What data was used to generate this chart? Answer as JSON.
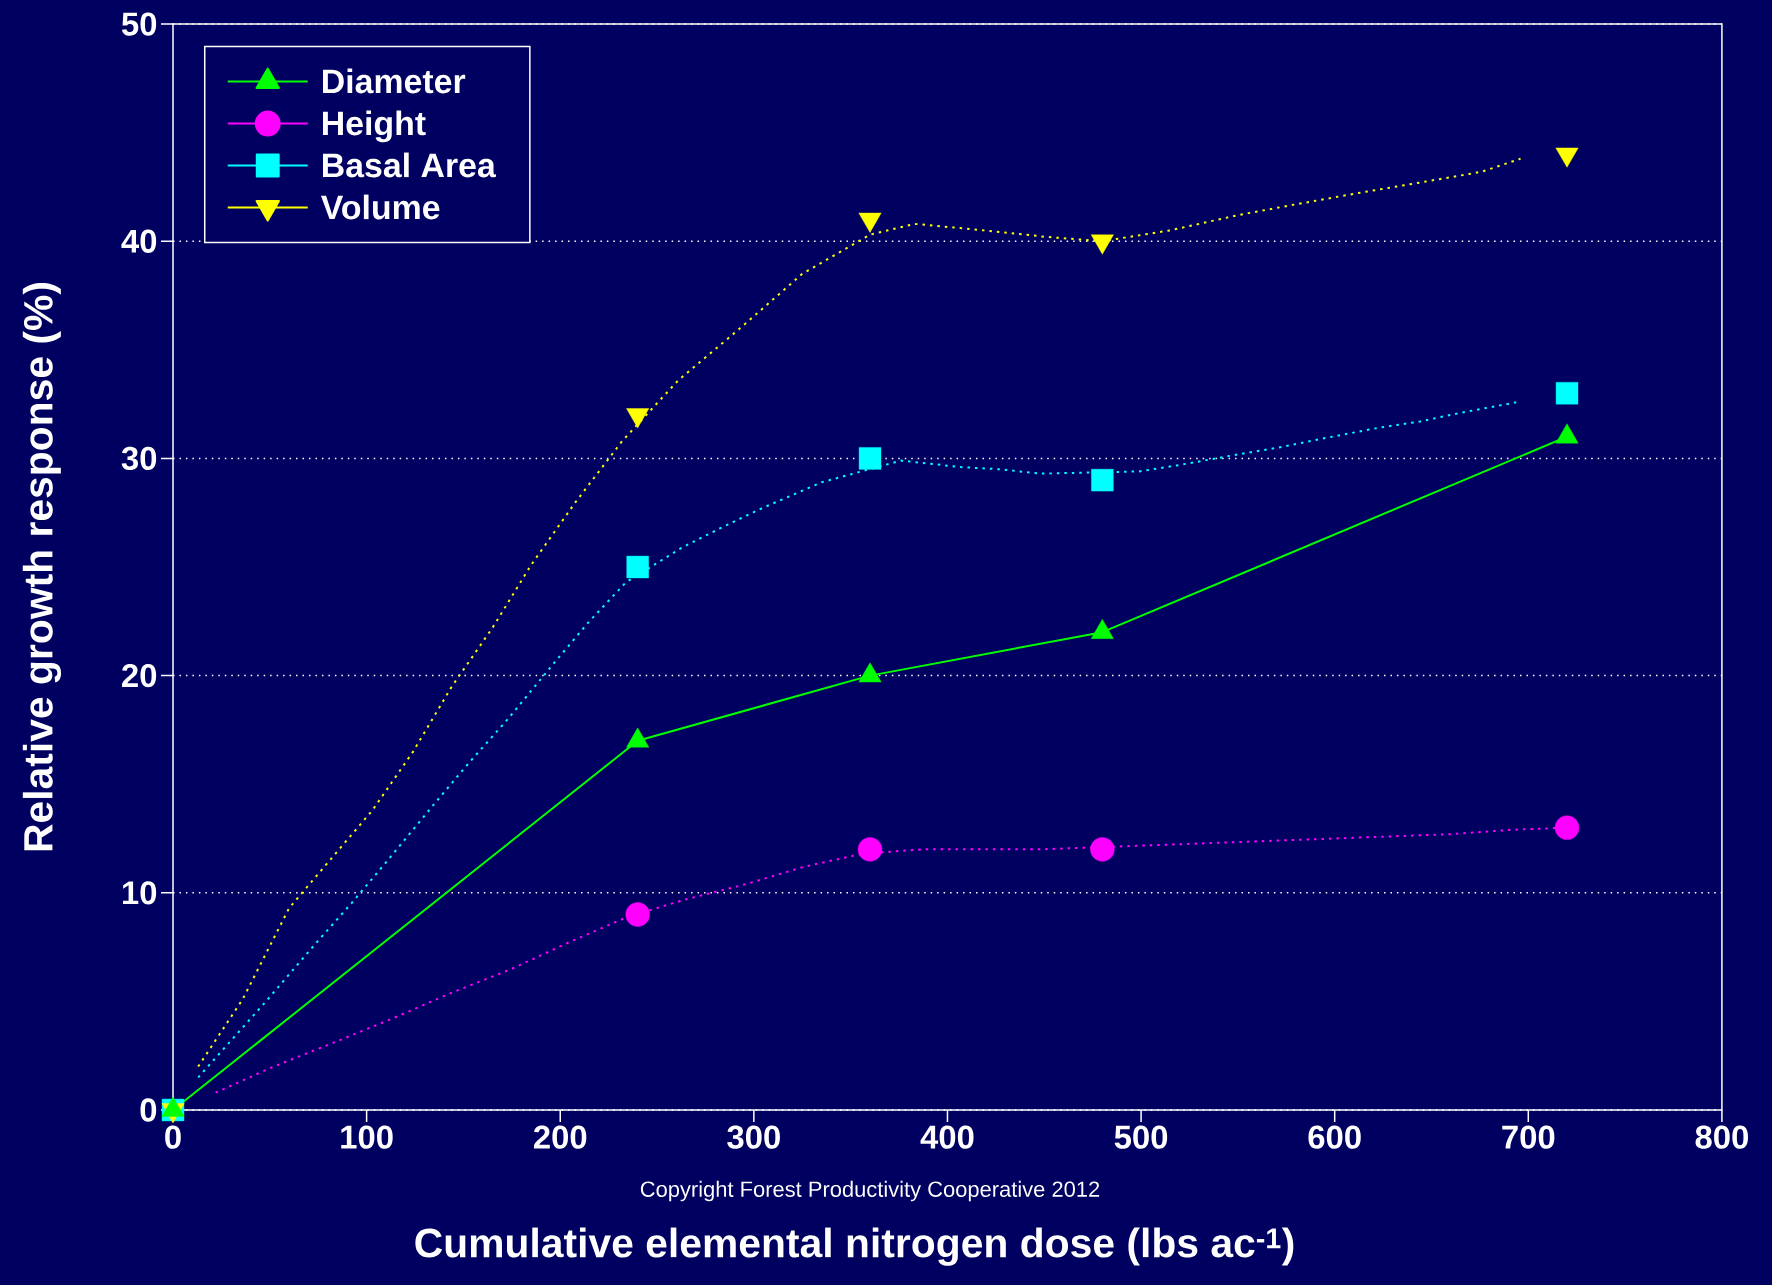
{
  "chart_data": {
    "type": "scatter",
    "xlabel": "Cumulative elemental nitrogen dose (lbs ac$^{-1}$)",
    "ylabel": "Relative growth response (%)",
    "annotations": [
      "Copyright Forest Productivity Cooperative 2012"
    ],
    "xlim": [
      0,
      800
    ],
    "ylim": [
      0,
      50
    ],
    "xticks": [
      0,
      100,
      200,
      300,
      400,
      500,
      600,
      700,
      800
    ],
    "yticks": [
      0,
      10,
      20,
      30,
      40,
      50
    ],
    "grid": "y",
    "legend": "top left",
    "x": [
      0,
      240,
      360,
      480,
      720
    ],
    "series": [
      {
        "name": "Diameter",
        "type": "line",
        "color": "#00ff00",
        "marker": "triangle",
        "line_style": "solid",
        "values": [
          0,
          17,
          20,
          22,
          31
        ]
      },
      {
        "name": "Height",
        "color": "#ff00ff",
        "marker": "circle",
        "values": [
          null,
          9,
          12,
          12,
          13
        ]
      },
      {
        "name": "Basal Area",
        "color": "#00ffff",
        "marker": "square",
        "values": [
          0,
          25,
          30,
          29,
          33
        ]
      },
      {
        "name": "Volume",
        "color": "#ffff00",
        "marker": "triangle down",
        "values": [
          0,
          32,
          41,
          40,
          44
        ]
      },
      {
        "type": "line",
        "color": "#ff00ff",
        "marker": "none",
        "line_style": "dotted",
        "x": [
          22,
          52,
          83,
          113,
          144,
          175,
          204,
          235,
          265,
          296,
          326,
          356,
          387,
          417,
          448,
          509,
          539,
          569,
          600,
          630,
          660,
          691,
          720
        ],
        "values": [
          0.8,
          2,
          3.1,
          4.2,
          5.4,
          6.5,
          7.7,
          8.9,
          9.7,
          10.4,
          11.2,
          11.8,
          12,
          12,
          12,
          12.2,
          12.3,
          12.4,
          12.5,
          12.6,
          12.7,
          12.9,
          13
        ]
      },
      {
        "type": "line",
        "color": "#00ffff",
        "marker": "none",
        "line_style": "dotted",
        "x": [
          13,
          30,
          48,
          74,
          92,
          110,
          135,
          153,
          172,
          197,
          215,
          234,
          263,
          283,
          304,
          335,
          376,
          407,
          427,
          448,
          499,
          520,
          551,
          571,
          593,
          622,
          644,
          665,
          695
        ],
        "values": [
          1.5,
          3.2,
          5,
          7.7,
          9.5,
          11.4,
          14.1,
          16,
          17.9,
          20.6,
          22.5,
          24.3,
          25.9,
          26.8,
          27.7,
          28.9,
          29.9,
          29.6,
          29.5,
          29.3,
          29.4,
          29.7,
          30.2,
          30.5,
          30.9,
          31.4,
          31.7,
          32.1,
          32.6
        ]
      },
      {
        "type": "line",
        "color": "#ffff00",
        "marker": "none",
        "line_style": "dotted",
        "x": [
          13,
          36,
          60,
          103,
          124,
          144,
          165,
          185,
          208,
          232,
          261,
          293,
          325,
          360,
          383,
          419,
          451,
          480,
          515,
          550,
          580,
          611,
          644,
          676,
          696
        ],
        "values": [
          2,
          5.1,
          9.3,
          13.8,
          16.5,
          19.5,
          22.2,
          25.1,
          28,
          30.8,
          33.6,
          36,
          38.5,
          40.3,
          40.8,
          40.5,
          40.2,
          40,
          40.5,
          41.2,
          41.7,
          42.2,
          42.7,
          43.2,
          43.8
        ]
      }
    ]
  }
}
